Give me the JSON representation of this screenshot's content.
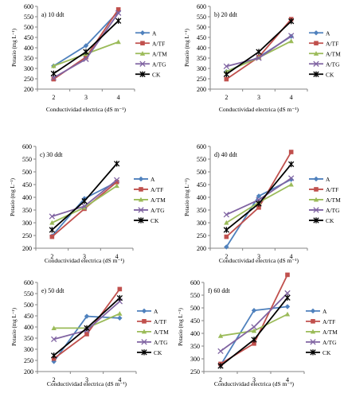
{
  "series_styles": [
    {
      "name": "A",
      "color": "#4f81bd",
      "marker": "diamond"
    },
    {
      "name": "A/TF",
      "color": "#c0504d",
      "marker": "square"
    },
    {
      "name": "A/TM",
      "color": "#9bbb59",
      "marker": "triangle"
    },
    {
      "name": "A/TG",
      "color": "#8064a2",
      "marker": "x"
    },
    {
      "name": "CK",
      "color": "#000000",
      "marker": "star"
    }
  ],
  "chart_data": [
    {
      "type": "line",
      "title": "a) 10  ddt",
      "xlabel": "Conductividad electrica (dS m⁻¹)",
      "ylabel": "Potasio (mg L⁻¹)",
      "x": [
        2,
        3,
        4
      ],
      "ylim": [
        200,
        600
      ],
      "yticks": [
        200,
        250,
        300,
        350,
        400,
        450,
        500,
        550,
        600
      ],
      "grid": false,
      "legend": "right",
      "series": [
        {
          "name": "A",
          "values": [
            312,
            410,
            575
          ]
        },
        {
          "name": "A/TF",
          "values": [
            248,
            355,
            585
          ]
        },
        {
          "name": "A/TM",
          "values": [
            312,
            370,
            428
          ]
        },
        {
          "name": "A/TG",
          "values": [
            255,
            345,
            568
          ]
        },
        {
          "name": "CK",
          "values": [
            275,
            380,
            530
          ]
        }
      ]
    },
    {
      "type": "line",
      "title": "b) 20 ddt",
      "xlabel": "Conductividad electrica (dS m⁻¹)",
      "ylabel": "Potasio (mg L⁻¹)",
      "x": [
        2,
        3,
        4
      ],
      "ylim": [
        200,
        600
      ],
      "yticks": [
        200,
        250,
        300,
        350,
        400,
        450,
        500,
        550,
        600
      ],
      "grid": false,
      "legend": "right",
      "series": [
        {
          "name": "A",
          "values": [
            285,
            355,
            455
          ]
        },
        {
          "name": "A/TF",
          "values": [
            248,
            355,
            538
          ]
        },
        {
          "name": "A/TM",
          "values": [
            285,
            352,
            432
          ]
        },
        {
          "name": "A/TG",
          "values": [
            310,
            350,
            458
          ]
        },
        {
          "name": "CK",
          "values": [
            272,
            380,
            528
          ]
        }
      ]
    },
    {
      "type": "line",
      "title": "c) 30 ddt",
      "xlabel": "Conductividad electrica (dS m⁻¹)",
      "ylabel": "Potasio (mg L⁻¹)",
      "x": [
        2,
        3,
        4
      ],
      "ylim": [
        200,
        600
      ],
      "yticks": [
        200,
        250,
        300,
        350,
        400,
        450,
        500,
        550,
        600
      ],
      "grid": false,
      "legend": "right",
      "series": [
        {
          "name": "A",
          "values": [
            248,
            395,
            460
          ]
        },
        {
          "name": "A/TF",
          "values": [
            245,
            355,
            460
          ]
        },
        {
          "name": "A/TM",
          "values": [
            300,
            360,
            445
          ]
        },
        {
          "name": "A/TG",
          "values": [
            325,
            365,
            468
          ]
        },
        {
          "name": "CK",
          "values": [
            272,
            385,
            532
          ]
        }
      ]
    },
    {
      "type": "line",
      "title": "d) 40 ddt",
      "xlabel": "Conductividad electrica (dS m⁻¹)",
      "ylabel": "Potasio (mg L⁻¹)",
      "x": [
        2,
        3,
        4
      ],
      "ylim": [
        200,
        600
      ],
      "yticks": [
        200,
        250,
        300,
        350,
        400,
        450,
        500,
        550,
        600
      ],
      "grid": false,
      "legend": "right",
      "series": [
        {
          "name": "A",
          "values": [
            205,
            405,
            470
          ]
        },
        {
          "name": "A/TF",
          "values": [
            245,
            360,
            578
          ]
        },
        {
          "name": "A/TM",
          "values": [
            300,
            380,
            450
          ]
        },
        {
          "name": "A/TG",
          "values": [
            332,
            390,
            475
          ]
        },
        {
          "name": "CK",
          "values": [
            272,
            375,
            530
          ]
        }
      ]
    },
    {
      "type": "line",
      "title": "e) 50 ddt",
      "xlabel": "Conductividad electrica (dS m⁻¹)",
      "ylabel": "Potasio (mg L⁻¹)",
      "x": [
        2,
        3,
        4
      ],
      "ylim": [
        200,
        600
      ],
      "yticks": [
        200,
        250,
        300,
        350,
        400,
        450,
        500,
        550,
        600
      ],
      "grid": false,
      "legend": "right",
      "series": [
        {
          "name": "A",
          "values": [
            245,
            448,
            440
          ]
        },
        {
          "name": "A/TF",
          "values": [
            258,
            368,
            570
          ]
        },
        {
          "name": "A/TM",
          "values": [
            395,
            395,
            460
          ]
        },
        {
          "name": "A/TG",
          "values": [
            345,
            385,
            515
          ]
        },
        {
          "name": "CK",
          "values": [
            272,
            395,
            530
          ]
        }
      ]
    },
    {
      "type": "line",
      "title": "f) 60 ddt",
      "xlabel": "Conductividad electrica (dS m⁻¹)",
      "ylabel": "Potasio (mg L⁻¹)",
      "x": [
        2,
        3,
        4
      ],
      "ylim": [
        250,
        600
      ],
      "yticks": [
        250,
        300,
        350,
        400,
        450,
        500,
        550,
        600
      ],
      "grid": false,
      "legend": "right",
      "series": [
        {
          "name": "A",
          "values": [
            275,
            490,
            505
          ]
        },
        {
          "name": "A/TF",
          "values": [
            280,
            360,
            630
          ]
        },
        {
          "name": "A/TM",
          "values": [
            390,
            410,
            475
          ]
        },
        {
          "name": "A/TG",
          "values": [
            330,
            425,
            558
          ]
        },
        {
          "name": "CK",
          "values": [
            272,
            375,
            540
          ]
        }
      ]
    }
  ]
}
